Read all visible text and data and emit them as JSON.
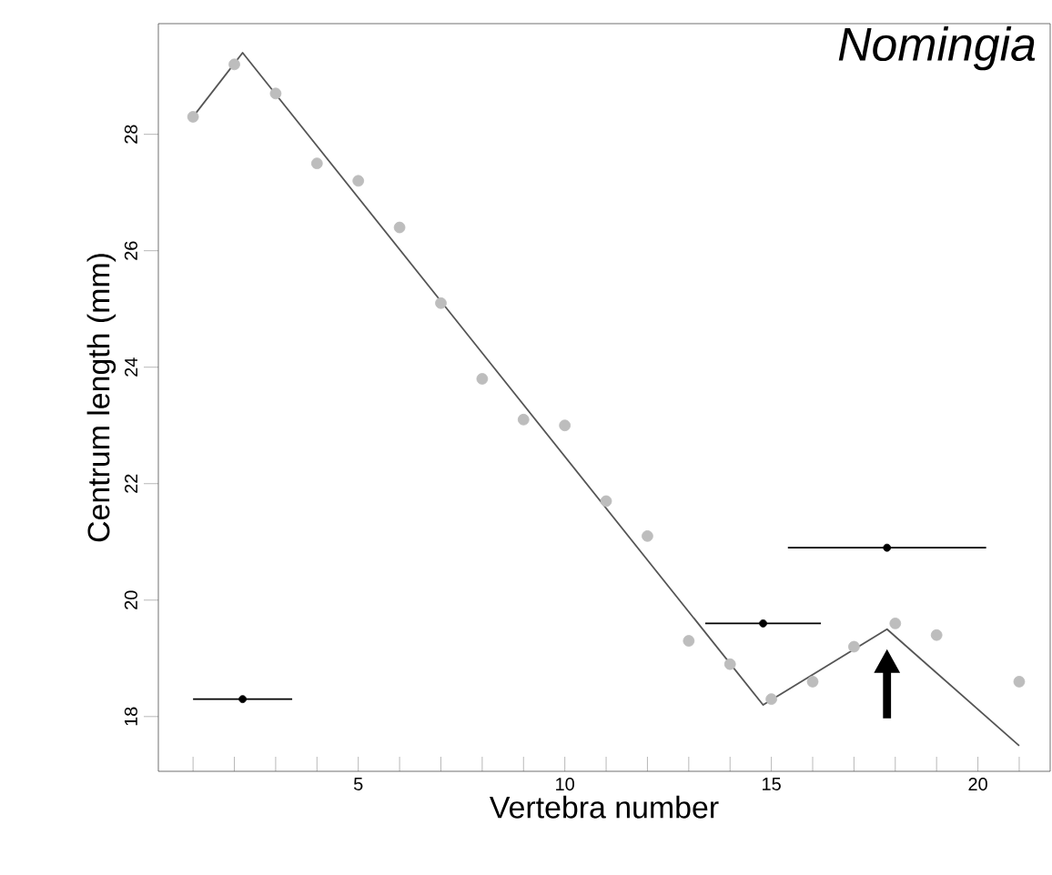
{
  "chart_data": {
    "type": "scatter",
    "title": "Nomingia",
    "xlabel": "Vertebra number",
    "ylabel": "Centrum length (mm)",
    "xlim": [
      0.16,
      21.75
    ],
    "ylim": [
      17.06,
      29.9
    ],
    "xticks": [
      {
        "value": 1,
        "label": null
      },
      {
        "value": 2,
        "label": null
      },
      {
        "value": 3,
        "label": null
      },
      {
        "value": 4,
        "label": null
      },
      5,
      {
        "value": 6,
        "label": null
      },
      {
        "value": 7,
        "label": null
      },
      {
        "value": 8,
        "label": null
      },
      {
        "value": 9,
        "label": null
      },
      10,
      {
        "value": 11,
        "label": null
      },
      {
        "value": 12,
        "label": null
      },
      {
        "value": 13,
        "label": null
      },
      {
        "value": 14,
        "label": null
      },
      15,
      {
        "value": 16,
        "label": null
      },
      {
        "value": 17,
        "label": null
      },
      {
        "value": 18,
        "label": null
      },
      {
        "value": 19,
        "label": null
      },
      20,
      {
        "value": 21,
        "label": null
      }
    ],
    "yticks": [
      18,
      20,
      22,
      24,
      26,
      28
    ],
    "grid": false,
    "series": [
      {
        "color": "#bdbdbd",
        "marker": "circle",
        "x": [
          1,
          2,
          3,
          4,
          5,
          6,
          7,
          8,
          9,
          10,
          11,
          12,
          13,
          14,
          15,
          16,
          17,
          18,
          19,
          21
        ],
        "values": [
          28.3,
          29.2,
          28.7,
          27.5,
          27.2,
          26.4,
          25.1,
          23.8,
          23.1,
          23.0,
          21.7,
          21.1,
          19.3,
          18.9,
          18.3,
          18.6,
          19.2,
          19.6,
          19.4,
          18.6
        ]
      },
      {
        "type": "line",
        "color": "#555555",
        "line_style": "solid",
        "marker": "none",
        "x": [
          1,
          2.2,
          14.8,
          17.8,
          21
        ],
        "values": [
          28.3,
          29.4,
          18.2,
          19.5,
          17.5
        ]
      },
      {
        "color": "#000000",
        "marker": "circle",
        "x": [
          2.2,
          14.8,
          17.8
        ],
        "values": [
          18.3,
          19.6,
          20.9
        ],
        "xerrors": [
          1.2,
          1.4,
          2.4
        ]
      }
    ]
  }
}
